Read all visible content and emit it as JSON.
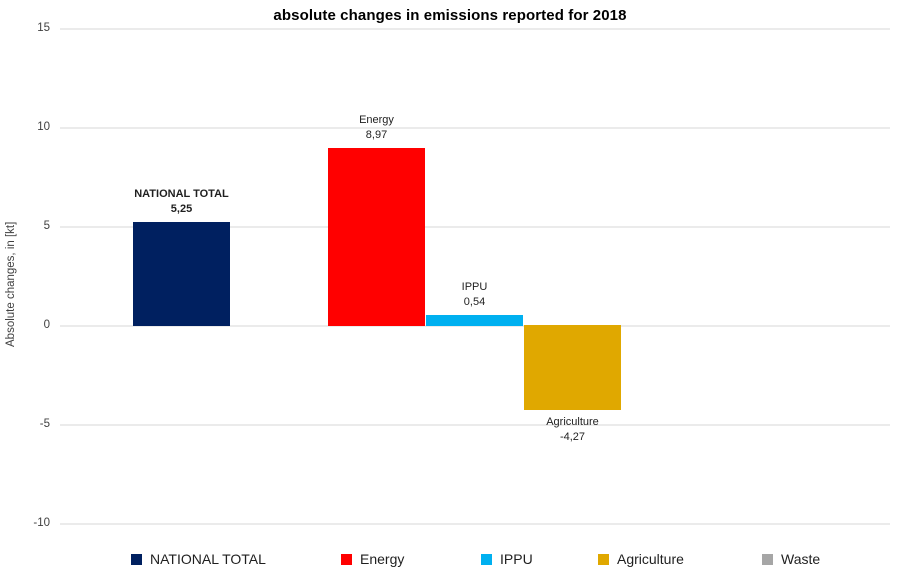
{
  "chart_data": {
    "type": "bar",
    "title": "absolute changes in emissions reported for 2018",
    "xlabel": "",
    "ylabel": "Absolute changes, in [kt]",
    "ylim": [
      -10,
      15
    ],
    "yticks": [
      15,
      10,
      5,
      0,
      -5,
      -10
    ],
    "grid": true,
    "legend_position": "bottom",
    "decimal_separator": ",",
    "series": [
      {
        "name": "NATIONAL TOTAL",
        "value": 5.25,
        "value_label": "5,25",
        "color": "#002060",
        "bold_label": true
      },
      {
        "name": "Energy",
        "value": 8.97,
        "value_label": "8,97",
        "color": "#FF0000",
        "bold_label": false
      },
      {
        "name": "IPPU",
        "value": 0.54,
        "value_label": "0,54",
        "color": "#00B0F0",
        "bold_label": false
      },
      {
        "name": "Agriculture",
        "value": -4.27,
        "value_label": "-4,27",
        "color": "#E0A800",
        "bold_label": false
      },
      {
        "name": "Waste",
        "value": null,
        "value_label": null,
        "color": "#A6A6A6",
        "bold_label": false
      }
    ],
    "legend": [
      {
        "label": "NATIONAL TOTAL",
        "color": "#002060"
      },
      {
        "label": "Energy",
        "color": "#FF0000"
      },
      {
        "label": "IPPU",
        "color": "#00B0F0"
      },
      {
        "label": "Agriculture",
        "color": "#E0A800"
      },
      {
        "label": "Waste",
        "color": "#A6A6A6"
      }
    ],
    "colors": {
      "gridline": "#ebebeb",
      "axis_text": "#404040",
      "label_text": "#1f1f1f",
      "title_text": "#000000"
    }
  }
}
